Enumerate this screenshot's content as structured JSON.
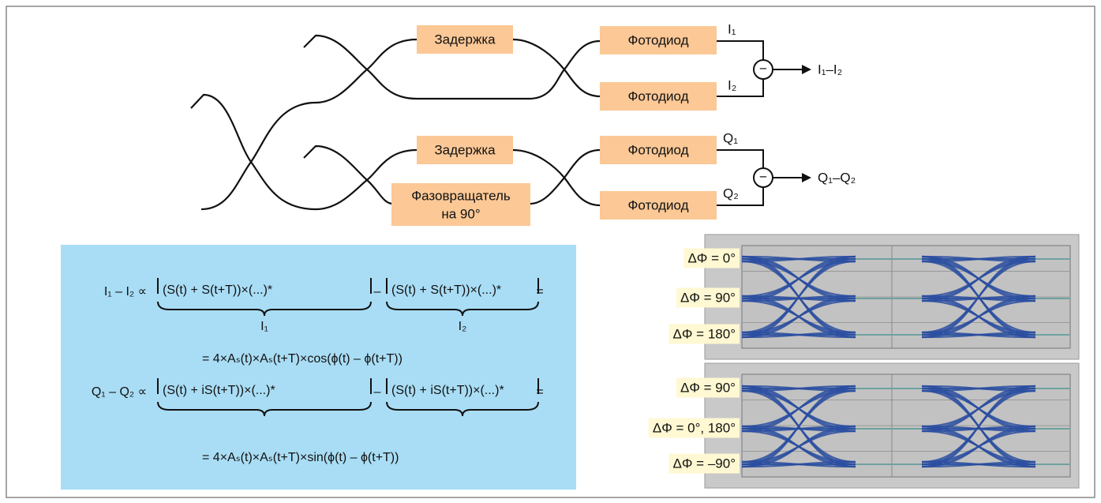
{
  "diagram": {
    "i_branch": {
      "delay": "Задержка",
      "photodiode_top": "Фотодиод",
      "photodiode_bottom": "Фотодиод",
      "minus": "−",
      "output_top": "I₁",
      "output_bottom": "I₂",
      "difference": "I₁–I₂"
    },
    "q_branch": {
      "delay": "Задержка",
      "phase_shifter": [
        "Фазовращатель",
        "на 90°"
      ],
      "photodiode_top": "Фотодиод",
      "photodiode_bottom": "Фотодиод",
      "minus": "−",
      "output_top": "Q₁",
      "output_bottom": "Q₂",
      "difference": "Q₁–Q₂"
    }
  },
  "formulas": {
    "i": {
      "lhs": "I₁ – I₂ ∝",
      "term1": "(S(t) + S(t+T))×(...)*",
      "minus": "–",
      "term2": "(S(t) + S(t+T))×(...)*",
      "equals": "=",
      "brace1": "I₁",
      "brace2": "I₂",
      "result": "= 4×Aₛ(t)×Aₛ(t+T)×cos(ϕ(t) – ϕ(t+T))"
    },
    "q": {
      "lhs": "Q₁ – Q₂ ∝",
      "term1": "(S(t) + iS(t+T))×(...)*",
      "minus": "–",
      "term2": "(S(t) + iS(t+T))×(...)*",
      "equals": "=",
      "result": "= 4×Aₛ(t)×Aₛ(t+T)×sin(ϕ(t) – ϕ(t+T))"
    }
  },
  "eye_diagrams": [
    {
      "labels": [
        "ΔΦ = 0°",
        "ΔΦ = 90°",
        "ΔΦ = 180°"
      ]
    },
    {
      "labels": [
        "ΔΦ = 90°",
        "ΔΦ = 0°, 180°",
        "ΔΦ = –90°"
      ]
    }
  ]
}
